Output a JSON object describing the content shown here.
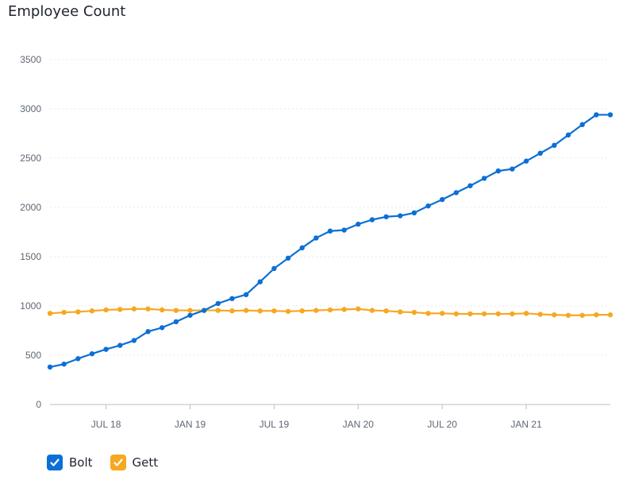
{
  "chart_data": {
    "type": "line",
    "title": "Employee Count",
    "xlabel": "",
    "ylabel": "",
    "x_tick_labels": [
      {
        "label": "JUL 18",
        "x": "2018-07"
      },
      {
        "label": "JAN 19",
        "x": "2019-01"
      },
      {
        "label": "JUL 19",
        "x": "2019-07"
      },
      {
        "label": "JAN 20",
        "x": "2020-01"
      },
      {
        "label": "JUL 20",
        "x": "2020-07"
      },
      {
        "label": "JAN 21",
        "x": "2021-01"
      }
    ],
    "x": [
      "2018-03",
      "2018-04",
      "2018-05",
      "2018-06",
      "2018-07",
      "2018-08",
      "2018-09",
      "2018-10",
      "2018-11",
      "2018-12",
      "2019-01",
      "2019-02",
      "2019-03",
      "2019-04",
      "2019-05",
      "2019-06",
      "2019-07",
      "2019-08",
      "2019-09",
      "2019-10",
      "2019-11",
      "2019-12",
      "2020-01",
      "2020-02",
      "2020-03",
      "2020-04",
      "2020-05",
      "2020-06",
      "2020-07",
      "2020-08",
      "2020-09",
      "2020-10",
      "2020-11",
      "2020-12",
      "2021-01",
      "2021-02",
      "2021-03",
      "2021-04",
      "2021-05",
      "2021-06",
      "2021-07"
    ],
    "ylim": [
      0,
      3500
    ],
    "y_ticks": [
      0,
      500,
      1000,
      1500,
      2000,
      2500,
      3000,
      3500
    ],
    "grid": true,
    "legend_position": "bottom-left",
    "series": [
      {
        "name": "Bolt",
        "color": "#0b6fd6",
        "values": [
          380,
          410,
          465,
          515,
          560,
          600,
          650,
          740,
          780,
          840,
          905,
          955,
          1025,
          1075,
          1115,
          1245,
          1380,
          1485,
          1590,
          1690,
          1760,
          1770,
          1830,
          1875,
          1905,
          1915,
          1945,
          2015,
          2080,
          2150,
          2220,
          2295,
          2370,
          2390,
          2470,
          2550,
          2630,
          2735,
          2840,
          2940,
          2940
        ]
      },
      {
        "name": "Gett",
        "color": "#f6a821",
        "values": [
          925,
          935,
          940,
          950,
          960,
          965,
          970,
          970,
          960,
          955,
          955,
          955,
          955,
          950,
          955,
          950,
          950,
          945,
          950,
          955,
          960,
          965,
          970,
          955,
          950,
          940,
          935,
          925,
          925,
          920,
          920,
          920,
          920,
          920,
          925,
          915,
          910,
          905,
          905,
          910,
          910
        ]
      }
    ]
  },
  "legend": {
    "items": [
      {
        "label": "Bolt",
        "color": "#0b6fd6"
      },
      {
        "label": "Gett",
        "color": "#f6a821"
      }
    ]
  }
}
